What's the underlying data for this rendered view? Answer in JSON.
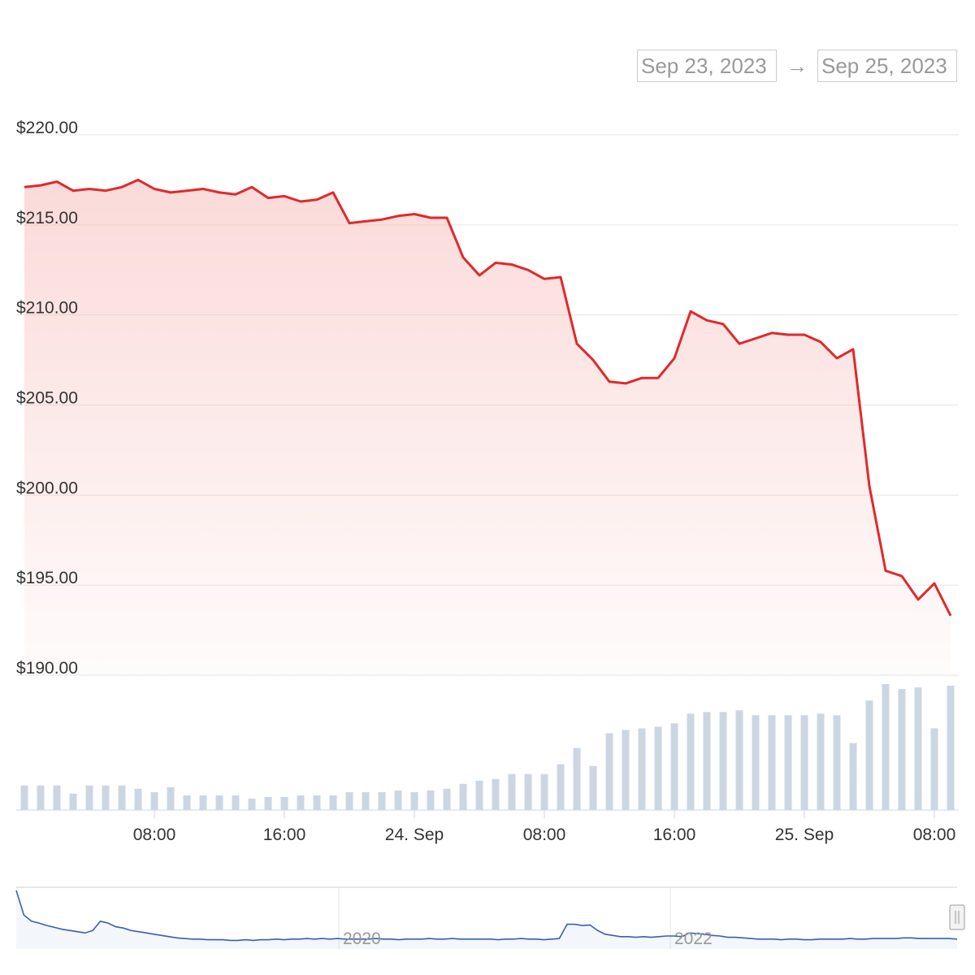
{
  "range_selector": {
    "from": "Sep 23, 2023",
    "arrow": "→",
    "to": "Sep 25, 2023"
  },
  "colors": {
    "price_line": "#e0292b",
    "area_fill": "#f4a8a4",
    "volume_bar": "#ccd6e3",
    "navigator_line": "#3a5fb0",
    "gridline": "#e6e6e6"
  },
  "chart_data": {
    "type": "line",
    "title": "",
    "xlabel": "",
    "ylabel": "",
    "x_start": "2023-09-23 00:00",
    "x_interval_minutes": 60,
    "ylim": [
      190,
      220
    ],
    "y_ticks": [
      "$190.00",
      "$195.00",
      "$200.00",
      "$205.00",
      "$210.00",
      "$215.00",
      "$220.00"
    ],
    "y_tick_values": [
      190,
      195,
      200,
      205,
      210,
      215,
      220
    ],
    "x_ticks": [
      {
        "label": "08:00",
        "index": 8
      },
      {
        "label": "16:00",
        "index": 16
      },
      {
        "label": "24. Sep",
        "index": 24
      },
      {
        "label": "08:00",
        "index": 32
      },
      {
        "label": "16:00",
        "index": 40
      },
      {
        "label": "25. Sep",
        "index": 48
      },
      {
        "label": "08:00",
        "index": 56
      }
    ],
    "grid": true,
    "series": [
      {
        "values": [
          217.1,
          217.2,
          217.4,
          216.9,
          217.0,
          216.9,
          217.1,
          217.5,
          217.0,
          216.8,
          216.9,
          217.0,
          216.8,
          216.7,
          217.1,
          216.5,
          216.6,
          216.3,
          216.4,
          216.8,
          215.1,
          215.2,
          215.3,
          215.5,
          215.6,
          215.4,
          215.4,
          213.2,
          212.2,
          212.9,
          212.8,
          212.5,
          212.0,
          212.1,
          208.4,
          207.5,
          206.3,
          206.2,
          206.5,
          206.5,
          207.6,
          210.2,
          209.7,
          209.5,
          208.4,
          208.7,
          209.0,
          208.9,
          208.9,
          208.5,
          207.6,
          208.1,
          200.5,
          195.8,
          195.5,
          194.2,
          195.1,
          193.3
        ]
      },
      {
        "type": "bar",
        "values": [
          3,
          3,
          3,
          2,
          3,
          3,
          3,
          2.6,
          2.2,
          2.8,
          1.8,
          1.8,
          1.8,
          1.8,
          1.4,
          1.6,
          1.6,
          1.8,
          1.8,
          1.8,
          2.2,
          2.2,
          2.2,
          2.4,
          2.2,
          2.4,
          2.6,
          3.2,
          3.6,
          3.8,
          4.4,
          4.4,
          4.4,
          5.6,
          7.6,
          5.4,
          9.4,
          9.8,
          10.0,
          10.2,
          10.6,
          11.8,
          12.0,
          12.0,
          12.2,
          11.6,
          11.6,
          11.6,
          11.6,
          11.8,
          11.6,
          8.2,
          13.4,
          15.4,
          14.8,
          15.0,
          10.0,
          15.2
        ]
      },
      {
        "type": "navigator",
        "x_labels": [
          "2020",
          "2022"
        ],
        "values": [
          95,
          55,
          45,
          42,
          38,
          35,
          32,
          30,
          28,
          26,
          30,
          45,
          42,
          36,
          34,
          30,
          28,
          26,
          24,
          22,
          20,
          18,
          17,
          16,
          16,
          15,
          15,
          15,
          14,
          14,
          15,
          14,
          15,
          15,
          16,
          15,
          16,
          16,
          17,
          16,
          17,
          16,
          17,
          16,
          16,
          16,
          16,
          17,
          16,
          16,
          15,
          16,
          16,
          16,
          17,
          16,
          16,
          17,
          16,
          16,
          16,
          16,
          16,
          15,
          16,
          16,
          17,
          16,
          16,
          15,
          16,
          17,
          40,
          40,
          38,
          39,
          30,
          24,
          22,
          20,
          20,
          19,
          20,
          19,
          20,
          21,
          21,
          20,
          26,
          25,
          24,
          22,
          21,
          19,
          19,
          18,
          17,
          16,
          16,
          16,
          15,
          16,
          16,
          15,
          15,
          16,
          16,
          16,
          16,
          17,
          16,
          16,
          17,
          17,
          17,
          17,
          18,
          18,
          17,
          17,
          17,
          17,
          17,
          16
        ]
      }
    ]
  }
}
